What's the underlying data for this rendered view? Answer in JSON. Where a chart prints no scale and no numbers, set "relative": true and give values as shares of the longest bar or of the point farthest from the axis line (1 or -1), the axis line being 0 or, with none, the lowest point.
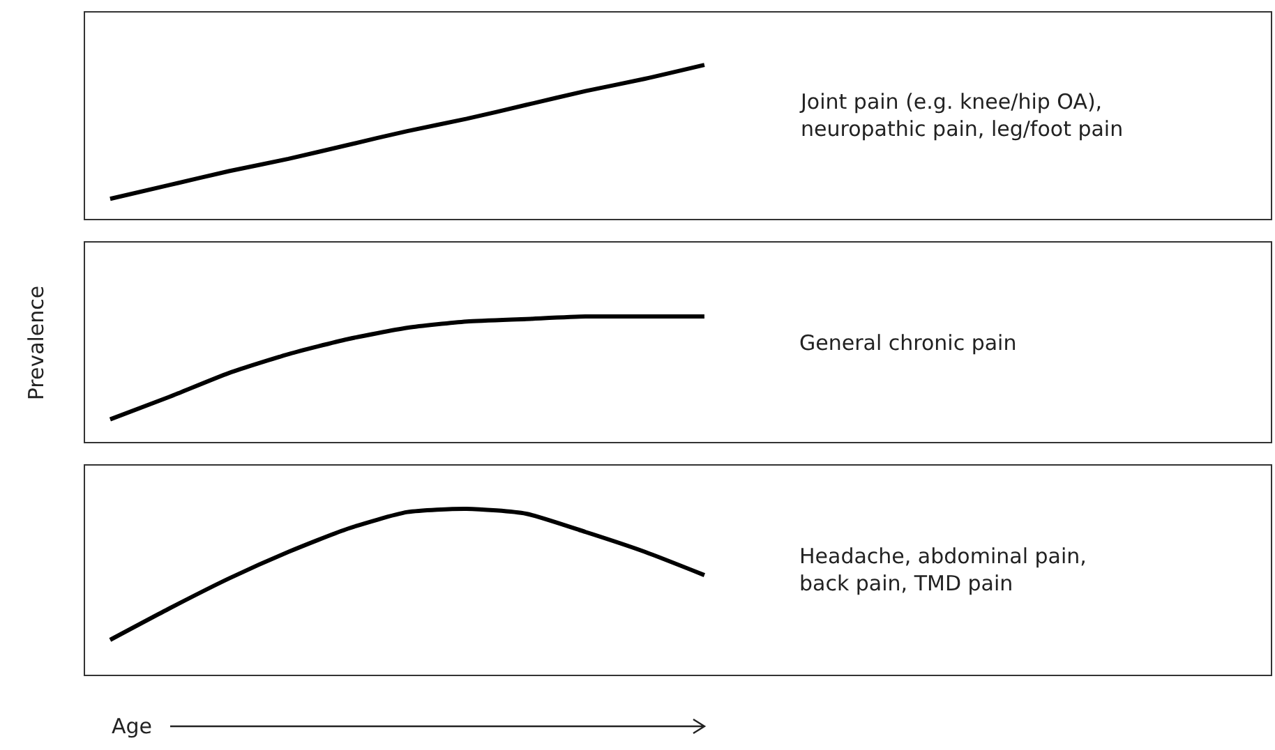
{
  "chart_data": [
    {
      "type": "line",
      "relative": true,
      "categories": [
        null,
        null,
        null,
        null,
        null,
        null,
        null,
        null,
        null,
        null,
        null
      ],
      "values": [
        0.13,
        0.22,
        0.31,
        0.39,
        0.48,
        0.57,
        0.65,
        0.74,
        0.83,
        0.91,
        1
      ],
      "color": "#000000",
      "annotations": [
        "Joint pain (e.g. knee/hip OA), neuropathic pain, leg/foot pain"
      ]
    },
    {
      "type": "line",
      "relative": true,
      "categories": [
        null,
        null,
        null,
        null,
        null,
        null,
        null,
        null,
        null,
        null,
        null
      ],
      "values": [
        0.18,
        0.36,
        0.55,
        0.7,
        0.82,
        0.91,
        0.96,
        0.98,
        1,
        1,
        1
      ],
      "color": "#000000",
      "ylabel": "Prevalence",
      "annotations": [
        "General chronic pain"
      ]
    },
    {
      "type": "line",
      "relative": true,
      "categories": [
        null,
        null,
        null,
        null,
        null,
        null,
        null,
        null,
        null,
        null,
        null
      ],
      "values": [
        0.21,
        0.4,
        0.58,
        0.74,
        0.88,
        0.98,
        1,
        0.97,
        0.86,
        0.74,
        0.6
      ],
      "color": "#000000",
      "xlabel": "Age",
      "annotations": [
        "Headache, abdominal pain, back pain, TMD pain"
      ]
    }
  ]
}
